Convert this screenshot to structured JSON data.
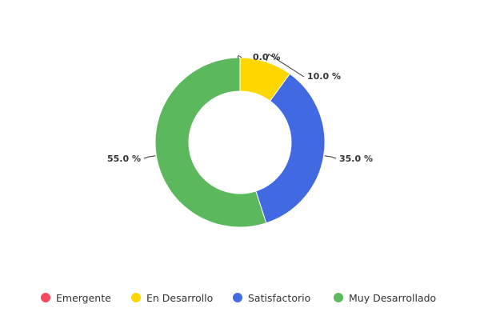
{
  "chart_data": {
    "type": "donut",
    "title": "",
    "categories": [
      "Emergente",
      "En Desarrollo",
      "Satisfactorio",
      "Muy Desarrollado"
    ],
    "values": [
      0.0,
      10.0,
      35.0,
      55.0
    ],
    "unit": "%",
    "data_labels": [
      "0.0 %",
      "10.0 %",
      "35.0 %",
      "55.0 %"
    ],
    "colors": [
      "#f74a5f",
      "#ffd700",
      "#4169e1",
      "#5cb85c"
    ],
    "legend_position": "bottom"
  }
}
